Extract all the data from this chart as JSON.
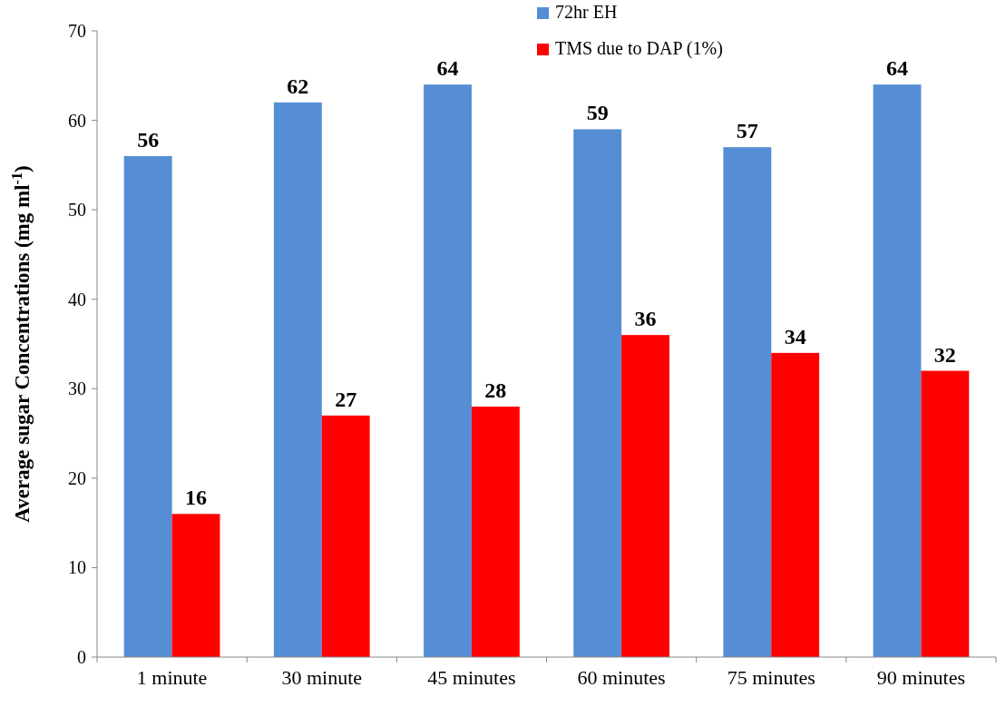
{
  "chart_data": {
    "type": "bar",
    "ylabel": "Average sugar Concentrations (mg ml$^{-1}$)",
    "categories": [
      "1 minute",
      "30 minute",
      "45 minutes",
      "60 minutes",
      "75 minutes",
      "90 minutes"
    ],
    "series": [
      {
        "name": "72hr EH",
        "color": "#558ed5",
        "values": [
          56,
          62,
          64,
          59,
          57,
          64
        ]
      },
      {
        "name": "TMS due to DAP (1%)",
        "color": "#ff0000",
        "values": [
          16,
          27,
          28,
          36,
          34,
          32
        ]
      }
    ],
    "ylim": [
      0,
      70
    ],
    "yticks": [
      0,
      10,
      20,
      30,
      40,
      50,
      60,
      70
    ],
    "data_labels": true,
    "legend": "top",
    "grid": false
  }
}
